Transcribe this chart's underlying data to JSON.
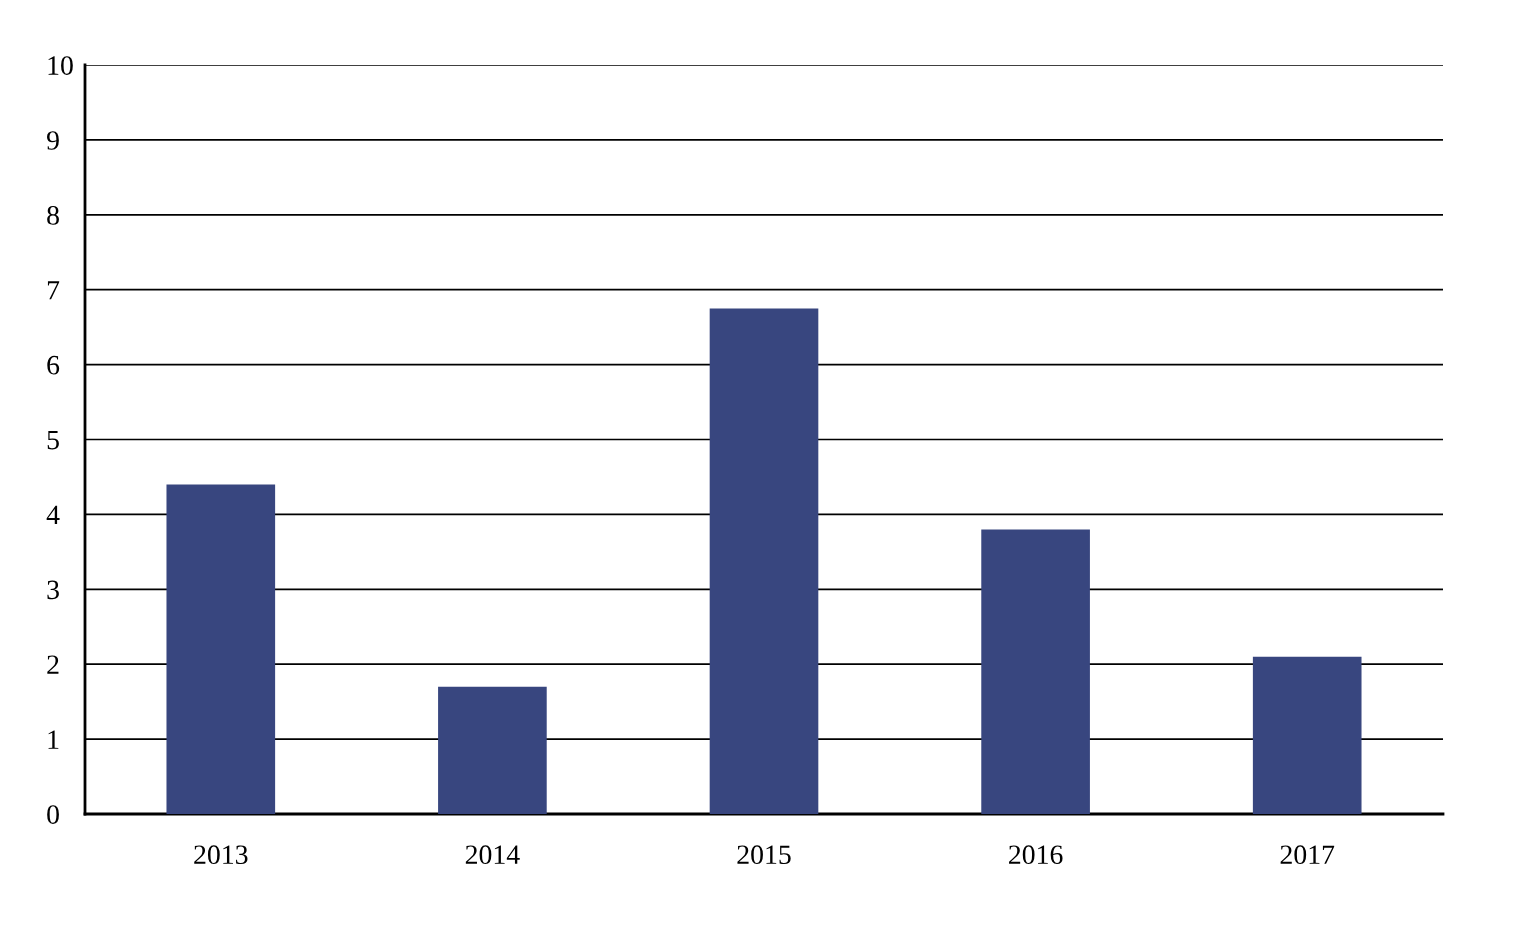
{
  "chart_data": {
    "type": "bar",
    "categories": [
      "2013",
      "2014",
      "2015",
      "2016",
      "2017"
    ],
    "values": [
      4.4,
      1.7,
      6.75,
      3.8,
      2.1
    ],
    "color": "#38467f",
    "ylim": [
      0,
      10
    ],
    "yticks": [
      0,
      1,
      2,
      3,
      4,
      5,
      6,
      7,
      8,
      9,
      10
    ],
    "grid": "y"
  }
}
